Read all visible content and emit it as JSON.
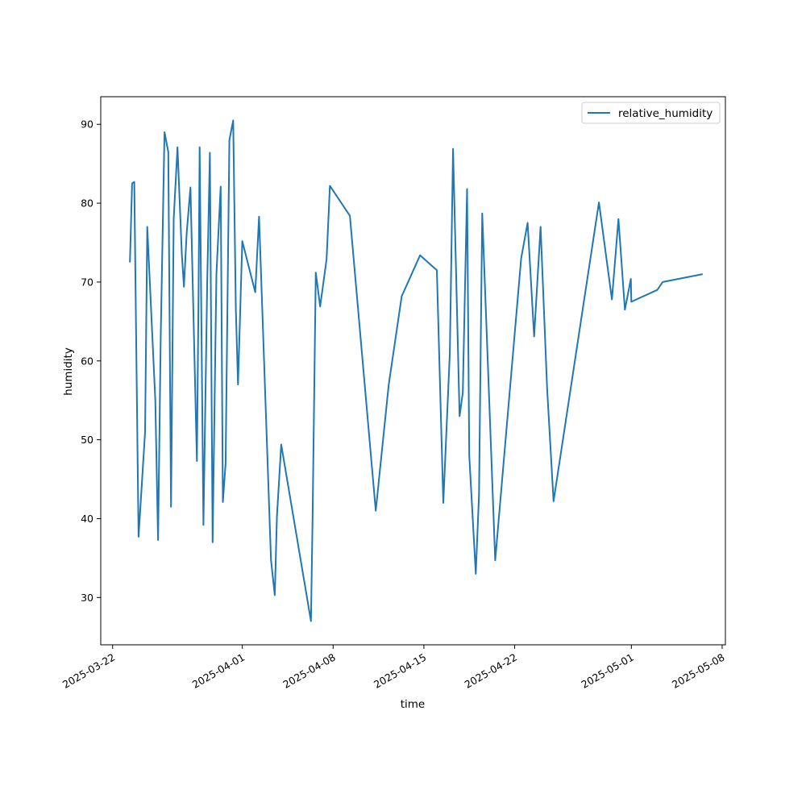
{
  "chart_data": {
    "type": "line",
    "title": "",
    "xlabel": "time",
    "ylabel": "humidity",
    "xlim": [
      "2025-03-21T02:00",
      "2025-05-08T06:00"
    ],
    "ylim": [
      24,
      93.5
    ],
    "grid": false,
    "legend_position": "top-right",
    "line_color": "#1f77b4",
    "x_ticks": [
      "2025-03-22",
      "2025-04-01",
      "2025-04-08",
      "2025-04-15",
      "2025-04-22",
      "2025-05-01",
      "2025-05-08"
    ],
    "y_ticks": [
      30,
      40,
      50,
      60,
      70,
      80,
      90
    ],
    "series": [
      {
        "name": "relative_humidity",
        "x": [
          "2025-03-23T08:00",
          "2025-03-23T12:00",
          "2025-03-23T16:00",
          "2025-03-24T00:00",
          "2025-03-24T12:00",
          "2025-03-24T16:00",
          "2025-03-25T07:00",
          "2025-03-25T12:00",
          "2025-03-25T17:00",
          "2025-03-26T00:00",
          "2025-03-26T07:00",
          "2025-03-26T12:00",
          "2025-03-26T17:00",
          "2025-03-27T00:00",
          "2025-03-27T08:00",
          "2025-03-27T12:00",
          "2025-03-27T17:00",
          "2025-03-28T00:00",
          "2025-03-28T12:00",
          "2025-03-28T15:00",
          "2025-03-28T17:00",
          "2025-03-29T00:00",
          "2025-03-29T07:00",
          "2025-03-29T12:00",
          "2025-03-29T17:00",
          "2025-03-30T00:00",
          "2025-03-30T08:00",
          "2025-03-30T12:00",
          "2025-03-30T17:00",
          "2025-03-31T00:00",
          "2025-03-31T07:00",
          "2025-03-31T12:00",
          "2025-03-31T16:00",
          "2025-04-01T00:00",
          "2025-04-02T00:00",
          "2025-04-02T07:00",
          "2025-04-03T05:00",
          "2025-04-03T12:00",
          "2025-04-03T16:00",
          "2025-04-04T00:00",
          "2025-04-06T07:00",
          "2025-04-06T10:00",
          "2025-04-06T16:00",
          "2025-04-07T00:00",
          "2025-04-07T12:00",
          "2025-04-07T18:00",
          "2025-04-09T07:00",
          "2025-04-11T07:00",
          "2025-04-12T07:00",
          "2025-04-13T07:00",
          "2025-04-14T17:00",
          "2025-04-16T00:00",
          "2025-04-16T12:00",
          "2025-04-17T00:00",
          "2025-04-17T06:00",
          "2025-04-17T18:00",
          "2025-04-18T00:00",
          "2025-04-18T08:00",
          "2025-04-18T12:00",
          "2025-04-19T00:00",
          "2025-04-19T06:00",
          "2025-04-19T12:00",
          "2025-04-20T12:00",
          "2025-04-22T12:00",
          "2025-04-23T00:00",
          "2025-04-23T12:00",
          "2025-04-24T00:00",
          "2025-04-24T12:00",
          "2025-04-25T00:00",
          "2025-04-28T12:00",
          "2025-04-29T12:00",
          "2025-04-30T00:00",
          "2025-04-30T12:00",
          "2025-04-30T23:00",
          "2025-05-01T00:00",
          "2025-05-03T00:00",
          "2025-05-03T10:00",
          "2025-05-06T12:00"
        ],
        "values": [
          72.5,
          82.5,
          82.7,
          37.7,
          51,
          77,
          55,
          37.3,
          63,
          89,
          86.5,
          41.5,
          78,
          87.1,
          73.5,
          69.4,
          76.2,
          82,
          47.3,
          68,
          87.1,
          39.2,
          70,
          86.4,
          37,
          71,
          82.1,
          42.1,
          47,
          88,
          90.5,
          66.6,
          57,
          75.2,
          68.7,
          78.3,
          34.8,
          30.3,
          40.3,
          49.4,
          27,
          40,
          71.2,
          66.9,
          72.9,
          82.2,
          78.4,
          41,
          57,
          68.2,
          73.4,
          71.5,
          42,
          61,
          86.9,
          53,
          56,
          81.8,
          48,
          33,
          43,
          78.7,
          34.7,
          73,
          77.5,
          63.1,
          77,
          56.5,
          42.2,
          80.1,
          67.8,
          78,
          66.5,
          70.4,
          67.5,
          69,
          70,
          71
        ]
      }
    ]
  }
}
